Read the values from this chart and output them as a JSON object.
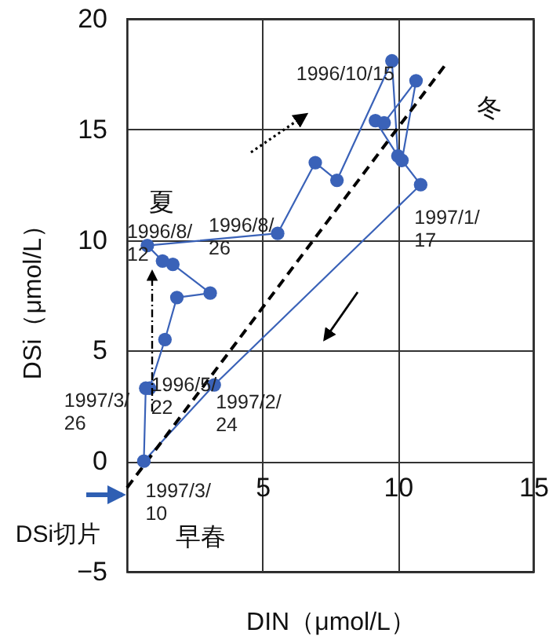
{
  "chart_data": {
    "type": "line",
    "xlabel": "DIN（μmol/L）",
    "ylabel": "DSi（μmol/L）",
    "xlim": [
      0,
      15
    ],
    "ylim": [
      -5,
      20
    ],
    "xticks": [
      5,
      10,
      15
    ],
    "yticks": [
      -5,
      0,
      5,
      10,
      15,
      20
    ],
    "grid": true,
    "marker": "circle",
    "series": [
      {
        "color": "#3a62b8",
        "x": [
          0.83,
          1.4,
          1.84,
          3.07,
          1.69,
          1.31,
          0.75,
          5.56,
          6.95,
          7.75,
          9.78,
          10.0,
          9.17,
          9.49,
          10.67,
          10.15,
          10.84,
          3.22,
          0.62,
          0.69
        ],
        "values": [
          3.3,
          5.5,
          7.4,
          7.6,
          8.9,
          9.05,
          9.75,
          10.3,
          13.5,
          12.7,
          18.1,
          13.8,
          15.4,
          15.3,
          17.2,
          13.6,
          12.5,
          3.45,
          0.0,
          3.3
        ]
      },
      {
        "color": "#000000",
        "marker": "none",
        "line_style": "dashed",
        "x": [
          0,
          11.8
        ],
        "values": [
          -1.2,
          18.0
        ]
      }
    ],
    "annotations": [
      {
        "text": "1996/8/12",
        "x": 0.75,
        "y": 9.75
      },
      {
        "text": "1996/8/26",
        "x": 5.56,
        "y": 10.3
      },
      {
        "text": "1996/10/15",
        "x": 9.78,
        "y": 18.1
      },
      {
        "text": "1997/1/17",
        "x": 10.84,
        "y": 12.5
      },
      {
        "text": "1996/5/22",
        "x": 0.83,
        "y": 3.3
      },
      {
        "text": "1997/2/24",
        "x": 3.22,
        "y": 3.45
      },
      {
        "text": "1997/3/26",
        "x": 0.69,
        "y": 3.3
      },
      {
        "text": "1997/3/10",
        "x": 0.62,
        "y": 0.0
      },
      "夏",
      "冬",
      "早春",
      "DSi切片"
    ]
  }
}
